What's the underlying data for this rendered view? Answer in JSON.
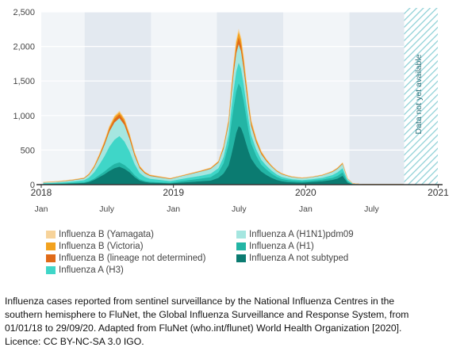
{
  "chart_data": {
    "type": "area",
    "stacked": true,
    "x_range": [
      "2018-01-01",
      "2020-12-31"
    ],
    "ylim": [
      0,
      2500
    ],
    "y_ticks": [
      {
        "value": 0,
        "label": "0"
      },
      {
        "value": 500,
        "label": "500"
      },
      {
        "value": 1000,
        "label": "1,000"
      },
      {
        "value": 1500,
        "label": "1,500"
      },
      {
        "value": 2000,
        "label": "2,000"
      },
      {
        "value": 2500,
        "label": "2,500"
      }
    ],
    "year_labels": [
      {
        "date": "2018-01-01",
        "label": "2018"
      },
      {
        "date": "2019-01-01",
        "label": "2019"
      },
      {
        "date": "2020-01-01",
        "label": "2020"
      },
      {
        "date": "2021-01-01",
        "label": "2021"
      }
    ],
    "month_labels": [
      {
        "date": "2018-01-01",
        "label": "Jan"
      },
      {
        "date": "2018-07-01",
        "label": "July"
      },
      {
        "date": "2019-01-01",
        "label": "Jan"
      },
      {
        "date": "2019-07-01",
        "label": "July"
      },
      {
        "date": "2020-01-01",
        "label": "Jan"
      },
      {
        "date": "2020-07-01",
        "label": "July"
      }
    ],
    "unavailable_label": "Data not yet available",
    "unavailable_from": "2020-09-29",
    "grid": true,
    "weeks": [
      "2018-01-07",
      "2018-02-04",
      "2018-03-04",
      "2018-04-01",
      "2018-04-29",
      "2018-05-13",
      "2018-05-27",
      "2018-06-10",
      "2018-06-24",
      "2018-07-08",
      "2018-07-22",
      "2018-08-05",
      "2018-08-19",
      "2018-09-02",
      "2018-09-16",
      "2018-09-30",
      "2018-10-14",
      "2018-10-28",
      "2018-11-25",
      "2018-12-23",
      "2019-01-20",
      "2019-02-17",
      "2019-03-17",
      "2019-04-14",
      "2019-05-05",
      "2019-05-19",
      "2019-06-02",
      "2019-06-09",
      "2019-06-16",
      "2019-06-23",
      "2019-06-30",
      "2019-07-07",
      "2019-07-14",
      "2019-07-21",
      "2019-07-28",
      "2019-08-04",
      "2019-08-18",
      "2019-09-01",
      "2019-09-15",
      "2019-09-29",
      "2019-10-13",
      "2019-10-27",
      "2019-11-10",
      "2019-11-24",
      "2019-12-22",
      "2020-01-19",
      "2020-02-16",
      "2020-03-01",
      "2020-03-15",
      "2020-03-29",
      "2020-04-12",
      "2020-04-26",
      "2020-05-10",
      "2020-05-24",
      "2020-06-07",
      "2020-06-21",
      "2020-07-05",
      "2020-07-26",
      "2020-08-16",
      "2020-09-06",
      "2020-09-27"
    ],
    "series": [
      {
        "name": "Influenza A not subtyped",
        "color": "#0b7b71",
        "values": [
          10,
          12,
          15,
          20,
          25,
          40,
          70,
          110,
          150,
          200,
          240,
          260,
          230,
          180,
          110,
          60,
          40,
          30,
          25,
          20,
          30,
          40,
          50,
          60,
          100,
          160,
          280,
          420,
          580,
          750,
          850,
          820,
          720,
          600,
          480,
          380,
          270,
          190,
          140,
          100,
          70,
          50,
          40,
          35,
          30,
          40,
          50,
          60,
          70,
          90,
          130,
          30,
          5,
          3,
          2,
          2,
          2,
          2,
          2,
          2,
          2
        ]
      },
      {
        "name": "Influenza A (H1)",
        "color": "#23b5a5",
        "values": [
          5,
          5,
          6,
          8,
          10,
          15,
          20,
          30,
          40,
          50,
          60,
          65,
          55,
          45,
          30,
          20,
          15,
          12,
          10,
          8,
          20,
          30,
          40,
          50,
          80,
          150,
          300,
          450,
          550,
          600,
          620,
          580,
          500,
          400,
          300,
          220,
          150,
          100,
          80,
          60,
          45,
          35,
          30,
          25,
          20,
          20,
          25,
          30,
          30,
          40,
          50,
          20,
          5,
          2,
          1,
          1,
          1,
          1,
          1,
          1,
          1
        ]
      },
      {
        "name": "Influenza A (H3)",
        "color": "#3fd6c8",
        "values": [
          8,
          10,
          15,
          20,
          30,
          50,
          90,
          150,
          220,
          300,
          350,
          380,
          340,
          260,
          160,
          90,
          60,
          45,
          35,
          25,
          30,
          35,
          40,
          50,
          60,
          90,
          140,
          200,
          250,
          290,
          300,
          280,
          240,
          200,
          160,
          120,
          90,
          70,
          55,
          45,
          35,
          28,
          25,
          20,
          18,
          20,
          25,
          30,
          40,
          50,
          60,
          15,
          3,
          2,
          1,
          1,
          1,
          1,
          1,
          1,
          1
        ]
      },
      {
        "name": "Influenza A (H1N1)pdm09",
        "color": "#a5e6e0",
        "values": [
          10,
          12,
          15,
          20,
          25,
          40,
          70,
          110,
          160,
          220,
          250,
          260,
          240,
          180,
          120,
          70,
          50,
          40,
          35,
          30,
          40,
          50,
          60,
          70,
          80,
          120,
          160,
          200,
          240,
          260,
          270,
          250,
          220,
          190,
          160,
          130,
          100,
          80,
          65,
          55,
          45,
          40,
          35,
          30,
          25,
          30,
          35,
          40,
          45,
          50,
          60,
          20,
          5,
          3,
          2,
          2,
          2,
          2,
          2,
          2,
          2
        ]
      },
      {
        "name": "Influenza B (lineage not determined)",
        "color": "#e06a18",
        "values": [
          2,
          2,
          3,
          4,
          5,
          8,
          12,
          20,
          30,
          40,
          50,
          55,
          50,
          40,
          25,
          15,
          10,
          8,
          6,
          5,
          4,
          5,
          6,
          8,
          10,
          20,
          30,
          50,
          70,
          90,
          100,
          90,
          80,
          65,
          50,
          35,
          25,
          18,
          12,
          8,
          6,
          5,
          4,
          4,
          3,
          3,
          4,
          5,
          6,
          8,
          10,
          3,
          1,
          0,
          0,
          0,
          0,
          0,
          0,
          0,
          0
        ]
      },
      {
        "name": "Influenza B (Victoria)",
        "color": "#f2a21f",
        "values": [
          2,
          2,
          2,
          3,
          4,
          6,
          10,
          15,
          20,
          25,
          30,
          32,
          30,
          25,
          18,
          12,
          8,
          6,
          5,
          4,
          3,
          4,
          5,
          6,
          8,
          15,
          25,
          40,
          55,
          70,
          80,
          75,
          65,
          55,
          45,
          35,
          25,
          18,
          12,
          8,
          6,
          5,
          4,
          3,
          3,
          2,
          3,
          3,
          4,
          5,
          6,
          2,
          1,
          0,
          0,
          0,
          0,
          0,
          0,
          0,
          0
        ]
      },
      {
        "name": "Influenza B (Yamagata)",
        "color": "#f7d39a",
        "values": [
          1,
          1,
          1,
          2,
          2,
          3,
          5,
          8,
          10,
          12,
          15,
          16,
          14,
          10,
          7,
          5,
          4,
          3,
          2,
          2,
          2,
          2,
          3,
          3,
          4,
          6,
          10,
          15,
          20,
          25,
          30,
          28,
          25,
          20,
          15,
          12,
          9,
          7,
          5,
          4,
          3,
          3,
          2,
          2,
          2,
          2,
          2,
          2,
          3,
          3,
          4,
          1,
          0,
          0,
          0,
          0,
          0,
          0,
          0,
          0,
          0
        ]
      }
    ]
  },
  "legend": {
    "col1": [
      "Influenza B (Yamagata)",
      "Influenza B (Victoria)",
      "Influenza B (lineage not determined)",
      "Influenza A (H3)"
    ],
    "col1_colors": [
      "#f7d39a",
      "#f2a21f",
      "#e06a18",
      "#3fd6c8"
    ],
    "col2": [
      "Influenza A (H1N1)pdm09",
      "Influenza A (H1)",
      "Influenza A not subtyped"
    ],
    "col2_colors": [
      "#a5e6e0",
      "#23b5a5",
      "#0b7b71"
    ]
  },
  "caption": {
    "line1": "Influenza cases reported from sentinel surveillance by the National Influenza Centres in the",
    "line2": "southern hemisphere to FluNet, the Global Influenza Surveillance and Response System, from",
    "line3": "01/01/18 to 29/09/20. Adapted from FluNet (who.int/flunet) World Health Organization [2020].",
    "line4": "Licence: CC BY-NC-SA 3.0 IGO."
  }
}
